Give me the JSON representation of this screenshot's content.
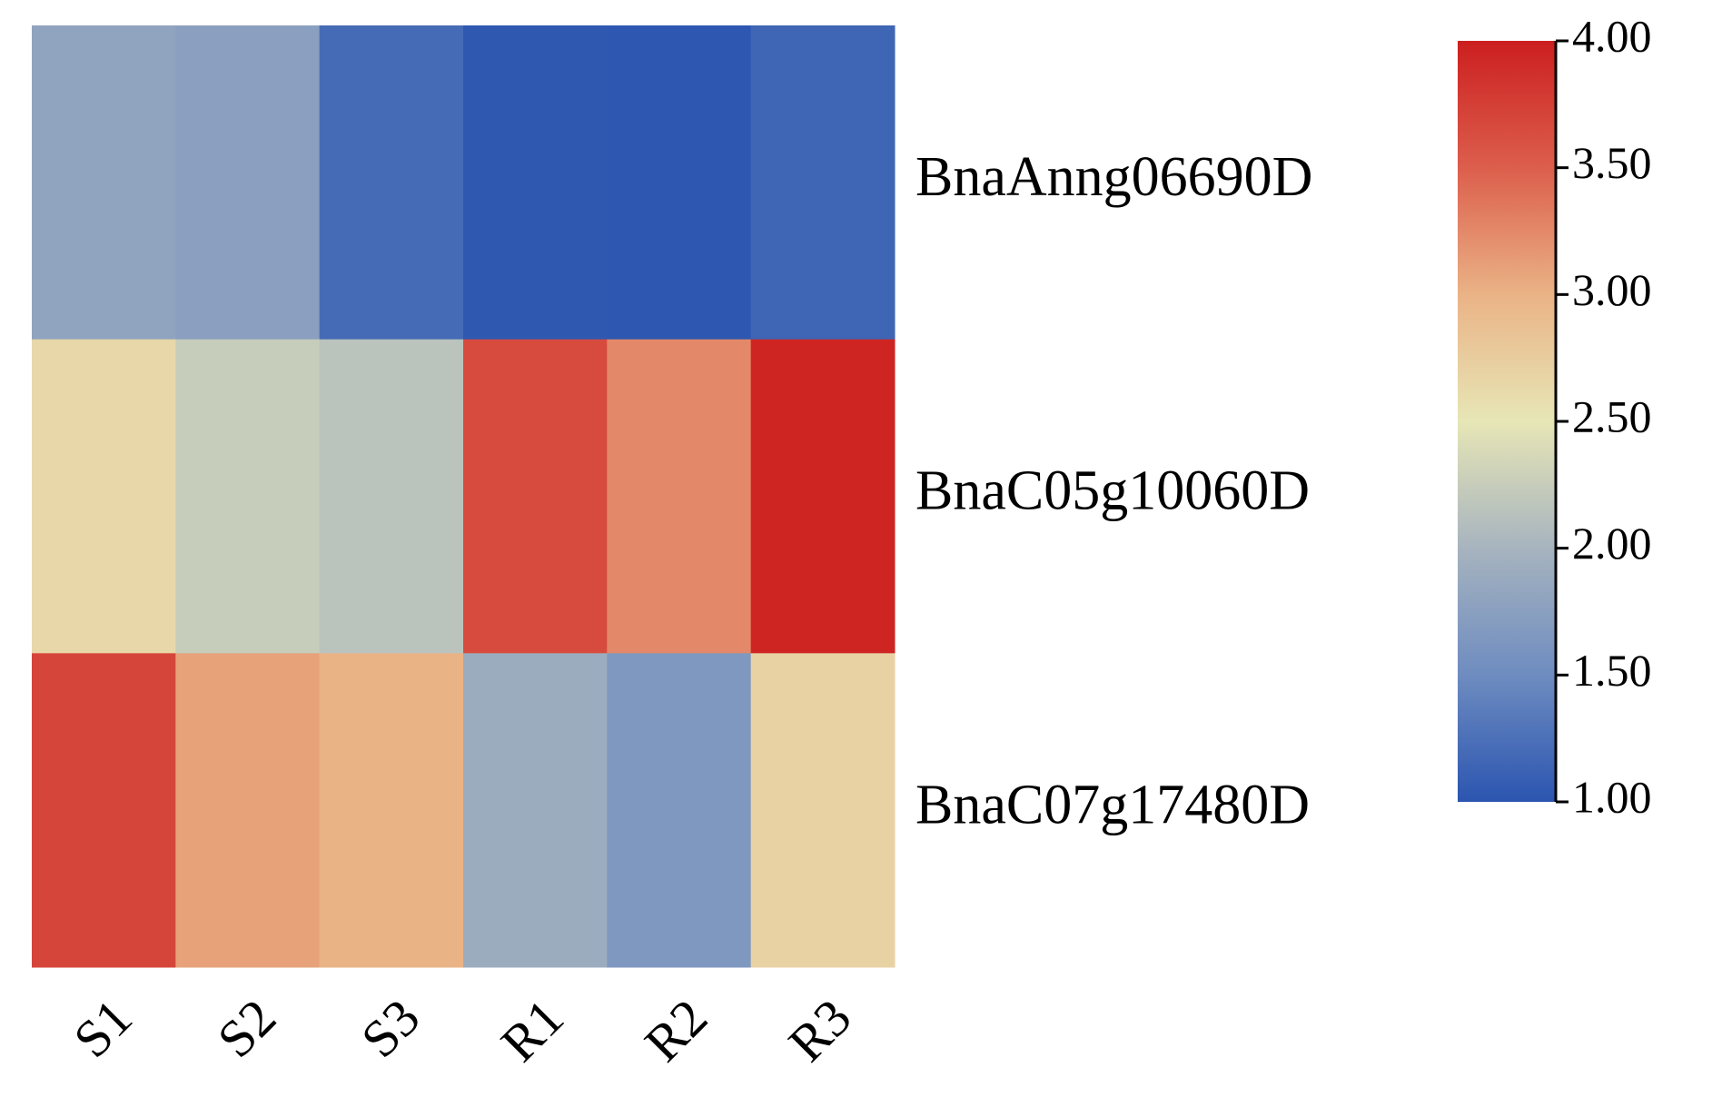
{
  "chart_data": {
    "type": "heatmap",
    "title": "",
    "xlabel": "",
    "ylabel": "",
    "columns": [
      "S1",
      "S2",
      "S3",
      "R1",
      "R2",
      "R3"
    ],
    "rows": [
      "BnaAnng06690D",
      "BnaC05g10060D",
      "BnaC07g17480D"
    ],
    "values": [
      [
        1.8,
        1.75,
        1.2,
        1.03,
        1.02,
        1.15
      ],
      [
        2.65,
        2.25,
        2.15,
        3.65,
        3.25,
        3.95
      ],
      [
        3.7,
        3.1,
        3.0,
        1.9,
        1.65,
        2.7
      ]
    ],
    "colorbar": {
      "min": 1.0,
      "max": 4.0,
      "ticks": [
        1.0,
        1.5,
        2.0,
        2.5,
        3.0,
        3.5,
        4.0
      ],
      "tick_labels": [
        "1.00",
        "1.50",
        "2.00",
        "2.50",
        "3.00",
        "3.50",
        "4.00"
      ],
      "position": "right",
      "colormap": [
        "#2b55b0",
        "#6e8cc0",
        "#a7b4bf",
        "#e7e6b6",
        "#eab386",
        "#dc5e4c",
        "#cc1f1f"
      ]
    }
  }
}
